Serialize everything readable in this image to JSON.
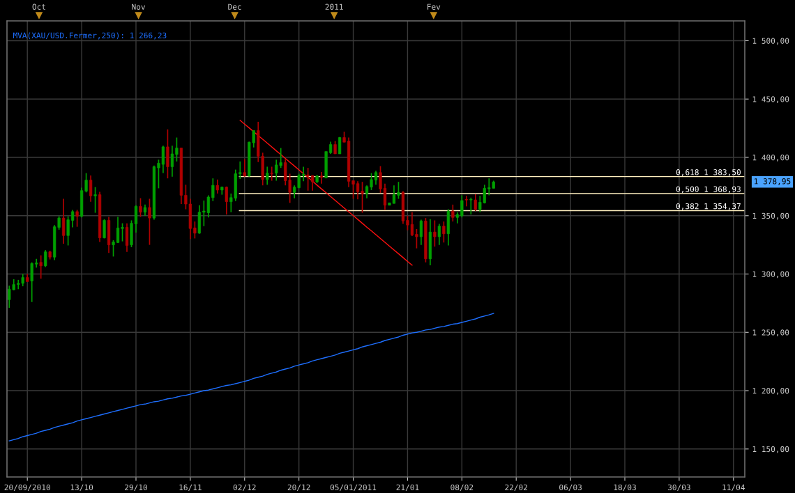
{
  "chart_data": {
    "type": "candlestick",
    "categories": [
      null,
      null,
      null,
      null,
      "20/09/2010",
      null,
      null,
      null,
      null,
      null,
      null,
      null,
      null,
      null,
      null,
      null,
      "13/10",
      null,
      null,
      null,
      null,
      null,
      null,
      null,
      null,
      null,
      null,
      null,
      "29/10",
      null,
      null,
      null,
      null,
      null,
      null,
      null,
      null,
      null,
      null,
      null,
      "16/11",
      null,
      null,
      null,
      null,
      null,
      null,
      null,
      null,
      null,
      null,
      null,
      "02/12",
      null,
      null,
      null,
      null,
      null,
      null,
      null,
      null,
      null,
      null,
      null,
      "20/12",
      null,
      null,
      null,
      null,
      null,
      null,
      null,
      null,
      null,
      null,
      null,
      "05/01/2011",
      null,
      null,
      null,
      null,
      null,
      null,
      null,
      null,
      null,
      null,
      null,
      "21/01",
      null,
      null,
      null,
      null,
      null,
      null,
      null,
      null,
      null,
      null,
      null,
      "08/02",
      null,
      null,
      null,
      null,
      null,
      null,
      null,
      null,
      null,
      null,
      null,
      "22/02",
      null,
      null,
      null,
      null,
      null,
      null,
      null,
      null,
      null,
      null,
      null,
      "06/03",
      null,
      null,
      null,
      null,
      null,
      null,
      null,
      null,
      null,
      null,
      null,
      "18/03",
      null,
      null,
      null,
      null,
      null,
      null,
      null,
      null,
      null,
      null,
      null,
      "30/03",
      null,
      null,
      null,
      null,
      null,
      null,
      null,
      null,
      null,
      null,
      null,
      "11/04",
      null,
      null
    ],
    "ohlc": [
      [
        1278,
        1290,
        1271,
        1287
      ],
      [
        1286.5,
        1295.5,
        1286,
        1291
      ],
      [
        1291,
        1295,
        1287,
        1292
      ],
      [
        1292,
        1300,
        1289.5,
        1297
      ],
      [
        1297,
        1300,
        1293.5,
        1293.5
      ],
      [
        1294,
        1310,
        1276,
        1309
      ],
      [
        1308.5,
        1313,
        1305.5,
        1309.5
      ],
      [
        1310,
        1316,
        1296,
        1307
      ],
      [
        1307,
        1320.5,
        1306,
        1319
      ],
      [
        1319,
        1320,
        1312.5,
        1314.5
      ],
      [
        1314.5,
        1342,
        1312,
        1340.5
      ],
      [
        1340,
        1349.5,
        1338,
        1348
      ],
      [
        1348,
        1364.5,
        1326,
        1333
      ],
      [
        1333,
        1349.5,
        1324.5,
        1346.5
      ],
      [
        1346,
        1355,
        1340,
        1353.5
      ],
      [
        1353.5,
        1355,
        1340.5,
        1349.5
      ],
      [
        1349.5,
        1374,
        1348.5,
        1371.5
      ],
      [
        1371,
        1386.5,
        1370,
        1380.5
      ],
      [
        1380.5,
        1384.5,
        1362,
        1367
      ],
      [
        1367,
        1374.5,
        1352.5,
        1368
      ],
      [
        1368,
        1370.5,
        1327.5,
        1331
      ],
      [
        1331,
        1347,
        1330.5,
        1346
      ],
      [
        1346,
        1349,
        1318,
        1325
      ],
      [
        1325,
        1329,
        1315,
        1327.5
      ],
      [
        1327,
        1349,
        1326.5,
        1339.5
      ],
      [
        1339,
        1343.5,
        1328,
        1340
      ],
      [
        1340,
        1343.5,
        1319,
        1324.5
      ],
      [
        1325,
        1346,
        1323,
        1343.5
      ],
      [
        1343,
        1359,
        1335.5,
        1358
      ],
      [
        1358,
        1365,
        1349,
        1353
      ],
      [
        1353,
        1359.5,
        1350,
        1357
      ],
      [
        1357,
        1364.5,
        1325,
        1348
      ],
      [
        1348,
        1393,
        1346.5,
        1392
      ],
      [
        1391,
        1398,
        1373.5,
        1395
      ],
      [
        1394,
        1410,
        1386.5,
        1409
      ],
      [
        1409,
        1424,
        1382,
        1392
      ],
      [
        1392,
        1410,
        1383.5,
        1403
      ],
      [
        1402.5,
        1417,
        1396.5,
        1408
      ],
      [
        1408,
        1408,
        1360,
        1367.5
      ],
      [
        1367.5,
        1376.5,
        1355.5,
        1360
      ],
      [
        1360,
        1364.5,
        1330,
        1339
      ],
      [
        1339.5,
        1345,
        1330.5,
        1335
      ],
      [
        1335,
        1359,
        1334.5,
        1353
      ],
      [
        1353,
        1363,
        1341,
        1354
      ],
      [
        1352.5,
        1367.5,
        1348.5,
        1366
      ],
      [
        1365.5,
        1382,
        1362.5,
        1376
      ],
      [
        1376,
        1381,
        1369,
        1372
      ],
      [
        1372,
        1375,
        1368,
        1374.5
      ],
      [
        1374.5,
        1375,
        1351,
        1362
      ],
      [
        1362,
        1369,
        1353,
        1365.5
      ],
      [
        1365,
        1389.5,
        1362.5,
        1386
      ],
      [
        1386,
        1396.5,
        1381.5,
        1387
      ],
      [
        1387,
        1398.5,
        1383.5,
        1384
      ],
      [
        1384,
        1413.5,
        1383.5,
        1413
      ],
      [
        1412.5,
        1423,
        1408.5,
        1423
      ],
      [
        1423,
        1430.5,
        1396,
        1401
      ],
      [
        1401,
        1404,
        1376,
        1381
      ],
      [
        1381,
        1392,
        1376.5,
        1386.5
      ],
      [
        1386.5,
        1392,
        1380,
        1386
      ],
      [
        1386.5,
        1398,
        1380,
        1393.5
      ],
      [
        1393,
        1408,
        1391,
        1395.5
      ],
      [
        1395.5,
        1398.5,
        1376,
        1380
      ],
      [
        1380.5,
        1386,
        1361,
        1370
      ],
      [
        1370,
        1376,
        1365,
        1374.5
      ],
      [
        1374,
        1386,
        1373.5,
        1384.5
      ],
      [
        1384.5,
        1392,
        1379.5,
        1385.5
      ],
      [
        1385,
        1391,
        1371.5,
        1384
      ],
      [
        1384.5,
        1384.5,
        1371.5,
        1379
      ],
      [
        1379,
        1385,
        1378,
        1384
      ],
      [
        1384,
        1387.5,
        1377.5,
        1383
      ],
      [
        1382.5,
        1405,
        1382,
        1405
      ],
      [
        1404,
        1413.5,
        1403,
        1411
      ],
      [
        1411,
        1414,
        1403,
        1403
      ],
      [
        1403,
        1417.5,
        1403,
        1417
      ],
      [
        1417,
        1422,
        1413,
        1413
      ],
      [
        1414,
        1417,
        1374.5,
        1379.5
      ],
      [
        1380,
        1380,
        1364.5,
        1377
      ],
      [
        1377.5,
        1379.5,
        1364,
        1370.5
      ],
      [
        1371,
        1379,
        1352.5,
        1369
      ],
      [
        1369,
        1376,
        1365,
        1375
      ],
      [
        1374.5,
        1386.5,
        1372,
        1381
      ],
      [
        1380.5,
        1388.5,
        1376.5,
        1387
      ],
      [
        1387,
        1392.5,
        1369.5,
        1373
      ],
      [
        1373.5,
        1377.5,
        1355,
        1359
      ],
      [
        1359,
        1361,
        1359,
        1361
      ],
      [
        1360.5,
        1376,
        1360.5,
        1368
      ],
      [
        1367.5,
        1379,
        1364.5,
        1370
      ],
      [
        1370,
        1371,
        1343,
        1345.5
      ],
      [
        1346,
        1350,
        1337.5,
        1342
      ],
      [
        1342.5,
        1353,
        1332.5,
        1333.5
      ],
      [
        1334,
        1338.5,
        1322,
        1332
      ],
      [
        1332,
        1346.5,
        1325,
        1345.5
      ],
      [
        1345.5,
        1348,
        1310,
        1313
      ],
      [
        1313,
        1347,
        1307.5,
        1336
      ],
      [
        1336,
        1346,
        1323.5,
        1332
      ],
      [
        1332,
        1343,
        1325,
        1341
      ],
      [
        1341,
        1345,
        1327,
        1334.5
      ],
      [
        1334.5,
        1355.5,
        1324.5,
        1354
      ],
      [
        1354,
        1359.5,
        1345,
        1348.5
      ],
      [
        1348.5,
        1353,
        1343.5,
        1351
      ],
      [
        1350,
        1367.5,
        1348.5,
        1363
      ],
      [
        1364,
        1367,
        1358,
        1363.5
      ],
      [
        1363.5,
        1365.5,
        1351,
        1364
      ],
      [
        1363.5,
        1368.5,
        1354,
        1355.5
      ],
      [
        1355.5,
        1367,
        1353,
        1361.5
      ],
      [
        1361,
        1376.5,
        1360.5,
        1373.5
      ],
      [
        1373,
        1382,
        1367.5,
        1374
      ],
      [
        1373.5,
        1380,
        1373.5,
        1378.95
      ],
      null,
      null,
      null,
      null,
      null,
      null,
      null,
      null,
      null,
      null,
      null,
      null,
      null,
      null,
      null,
      null,
      null,
      null,
      null,
      null,
      null,
      null,
      null,
      null,
      null,
      null,
      null,
      null,
      null,
      null,
      null,
      null,
      null,
      null,
      null,
      null,
      null,
      null,
      null,
      null,
      null,
      null,
      null,
      null,
      null,
      null,
      null,
      null,
      null,
      null,
      null,
      null,
      null,
      null,
      null
    ],
    "colors": [
      "#00a000",
      "#00a000",
      "#00a000",
      "#00a000",
      "#b00000",
      "#00a000",
      "#00a000",
      "#b00000",
      "#00a000",
      "#b00000",
      "#00a000",
      "#00a000",
      "#b00000",
      "#00a000",
      "#00a000",
      "#b00000",
      "#00a000",
      "#00a000",
      "#b00000",
      "#00a000",
      "#b00000",
      "#00a000",
      "#b00000",
      "#00a000",
      "#00a000",
      "#00a000",
      "#b00000",
      "#00a000",
      "#00a000",
      "#b00000",
      "#00a000",
      "#b00000",
      "#00a000",
      "#00a000",
      "#00a000",
      "#b00000",
      "#00a000",
      "#00a000",
      "#b00000",
      "#b00000",
      "#b00000",
      "#b00000",
      "#00a000",
      "#00a000",
      "#00a000",
      "#00a000",
      "#b00000",
      "#00a000",
      "#b00000",
      "#00a000",
      "#00a000",
      "#00a000",
      "#b00000",
      "#00a000",
      "#00a000",
      "#b00000",
      "#b00000",
      "#00a000",
      "#b00000",
      "#00a000",
      "#00a000",
      "#b00000",
      "#b00000",
      "#00a000",
      "#00a000",
      "#00a000",
      "#b00000",
      "#b00000",
      "#00a000",
      "#b00000",
      "#00a000",
      "#00a000",
      "#b00000",
      "#00a000",
      "#b00000",
      "#b00000",
      "#b00000",
      "#b00000",
      "#b00000",
      "#00a000",
      "#00a000",
      "#00a000",
      "#b00000",
      "#b00000",
      "#00a000",
      "#00a000",
      "#00a000",
      "#b00000",
      "#b00000",
      "#b00000",
      "#b00000",
      "#00a000",
      "#b00000",
      "#00a000",
      "#b00000",
      "#00a000",
      "#b00000",
      "#00a000",
      "#b00000",
      "#00a000",
      "#00a000",
      "#b00000",
      "#00a000",
      "#b00000",
      "#00a000",
      "#00a000",
      "#00a000",
      "#00a000",
      null,
      null,
      null,
      null,
      null,
      null,
      null,
      null,
      null,
      null,
      null,
      null,
      null,
      null,
      null,
      null,
      null,
      null,
      null,
      null,
      null,
      null,
      null,
      null,
      null,
      null,
      null,
      null,
      null,
      null,
      null,
      null,
      null,
      null,
      null,
      null,
      null,
      null,
      null,
      null,
      null,
      null,
      null,
      null,
      null,
      null,
      null,
      null,
      null,
      null,
      null,
      null,
      null,
      null,
      null
    ],
    "series": [
      {
        "type": "line",
        "name": "MVA(XAU/USD.Fermer,250): 1 266,23",
        "color": "#1e6fff",
        "values": [
          1157,
          1158,
          1159,
          1160.5,
          1161.5,
          1162.5,
          1163.5,
          1165,
          1166,
          1167,
          1168.5,
          1169.5,
          1170.5,
          1171.5,
          1172.5,
          1174,
          1175,
          1176,
          1177,
          1178,
          1179,
          1180,
          1181,
          1182,
          1183,
          1184,
          1185,
          1186,
          1187,
          1188,
          1188.5,
          1189.5,
          1190.5,
          1191,
          1192,
          1193,
          1193.5,
          1194.5,
          1195.5,
          1196,
          1197,
          1198,
          1199,
          1200,
          1200.5,
          1201.5,
          1202.5,
          1203.5,
          1204.5,
          1205,
          1206,
          1207,
          1208,
          1209,
          1210.5,
          1211.5,
          1212.5,
          1214,
          1215,
          1216,
          1217.5,
          1218.5,
          1219.5,
          1221,
          1222,
          1223,
          1224,
          1225.5,
          1226.5,
          1227.5,
          1228.5,
          1229.5,
          1230.5,
          1232,
          1233,
          1234,
          1235,
          1236,
          1237.5,
          1238.5,
          1239.5,
          1240.5,
          1241.5,
          1243,
          1244,
          1245,
          1246,
          1247.5,
          1248.5,
          1249.5,
          1250,
          1251,
          1252,
          1252.5,
          1253.5,
          1254.5,
          1255,
          1256,
          1257,
          1257.5,
          1258.5,
          1259.5,
          1260.5,
          1261.5,
          1263,
          1264,
          1265,
          1266.23,
          null,
          null,
          null,
          null,
          null,
          null,
          null,
          null,
          null,
          null,
          null,
          null,
          null,
          null,
          null,
          null,
          null,
          null,
          null,
          null,
          null,
          null,
          null,
          null,
          null,
          null,
          null,
          null,
          null,
          null,
          null,
          null,
          null,
          null,
          null,
          null,
          null,
          null,
          null,
          null,
          null,
          null,
          null,
          null,
          null,
          null,
          null,
          null,
          null,
          null,
          null,
          null,
          null,
          null,
          null
        ]
      },
      {
        "type": "line",
        "color": "#ff1010",
        "values": [
          null,
          null,
          null,
          null,
          null,
          null,
          null,
          null,
          null,
          null,
          null,
          null,
          null,
          null,
          null,
          null,
          null,
          null,
          null,
          null,
          null,
          null,
          null,
          null,
          null,
          null,
          null,
          null,
          null,
          null,
          null,
          null,
          null,
          null,
          null,
          null,
          null,
          null,
          null,
          null,
          null,
          null,
          null,
          null,
          null,
          null,
          null,
          null,
          null,
          null,
          null,
          1431.8,
          1428.5,
          1425.3,
          1422,
          1418.7,
          1415.5,
          1412.2,
          1408.9,
          1405.6,
          1402.4,
          1399.1,
          1395.8,
          1392.6,
          1389.3,
          1386,
          1382.8,
          1379.5,
          1376.2,
          1372.9,
          1369.7,
          1366.4,
          1363.1,
          1359.9,
          1356.6,
          1353.3,
          1350.1,
          1346.8,
          1343.5,
          1340.2,
          1337,
          1333.7,
          1330.4,
          1327.2,
          1323.9,
          1320.6,
          1317.4,
          1314.1,
          1310.8,
          1307.6,
          null,
          null,
          null,
          null,
          null,
          null,
          null,
          null,
          null,
          null,
          null,
          null,
          null,
          null,
          null,
          null,
          null,
          null,
          null,
          null,
          null,
          null,
          null,
          null,
          null,
          null,
          null,
          null,
          null,
          null,
          null,
          null,
          null,
          null,
          null,
          null,
          null,
          null,
          null,
          null,
          null,
          null,
          null,
          null,
          null,
          null,
          null,
          null,
          null,
          null,
          null,
          null,
          null,
          null,
          null,
          null,
          null,
          null,
          null,
          null,
          null,
          null,
          null,
          null,
          null,
          null,
          null,
          null,
          null,
          null,
          null,
          null,
          null
        ]
      }
    ],
    "annotations": [
      "1 378,95"
    ],
    "ref_lines": [
      {
        "axis": "y",
        "value": 1383.5,
        "label": "0,618 1 383,50",
        "color": "#fff0c0"
      },
      {
        "axis": "y",
        "value": 1368.93,
        "label": "0,500 1 368,93",
        "color": "#fff0c0"
      },
      {
        "axis": "y",
        "value": 1354.37,
        "label": "0,382 1 354,37",
        "color": "#fff0c0"
      }
    ],
    "x2lim": [
      "2010-09-21",
      "2011-05-09"
    ],
    "x2ticks": [
      {
        "value": "2010-10-01",
        "label": "Oct"
      },
      {
        "value": "2010-11-01",
        "label": "Nov"
      },
      {
        "value": "2010-12-01",
        "label": "Dec"
      },
      {
        "value": "2011-01-01",
        "label": "2011"
      },
      {
        "value": "2011-02-01",
        "label": "Fev"
      }
    ],
    "ylim": [
      1126,
      1517
    ],
    "yticks": [
      {
        "value": 1150,
        "label": "1 150,00"
      },
      {
        "value": 1200,
        "label": "1 200,00"
      },
      {
        "value": 1250,
        "label": "1 250,00"
      },
      {
        "value": 1300,
        "label": "1 300,00"
      },
      {
        "value": 1350,
        "label": "1 350,00"
      },
      {
        "value": 1400,
        "label": "1 400,00"
      },
      {
        "value": 1450,
        "label": "1 450,00"
      },
      {
        "value": 1500,
        "label": "1 500,00"
      }
    ],
    "grid": true
  }
}
